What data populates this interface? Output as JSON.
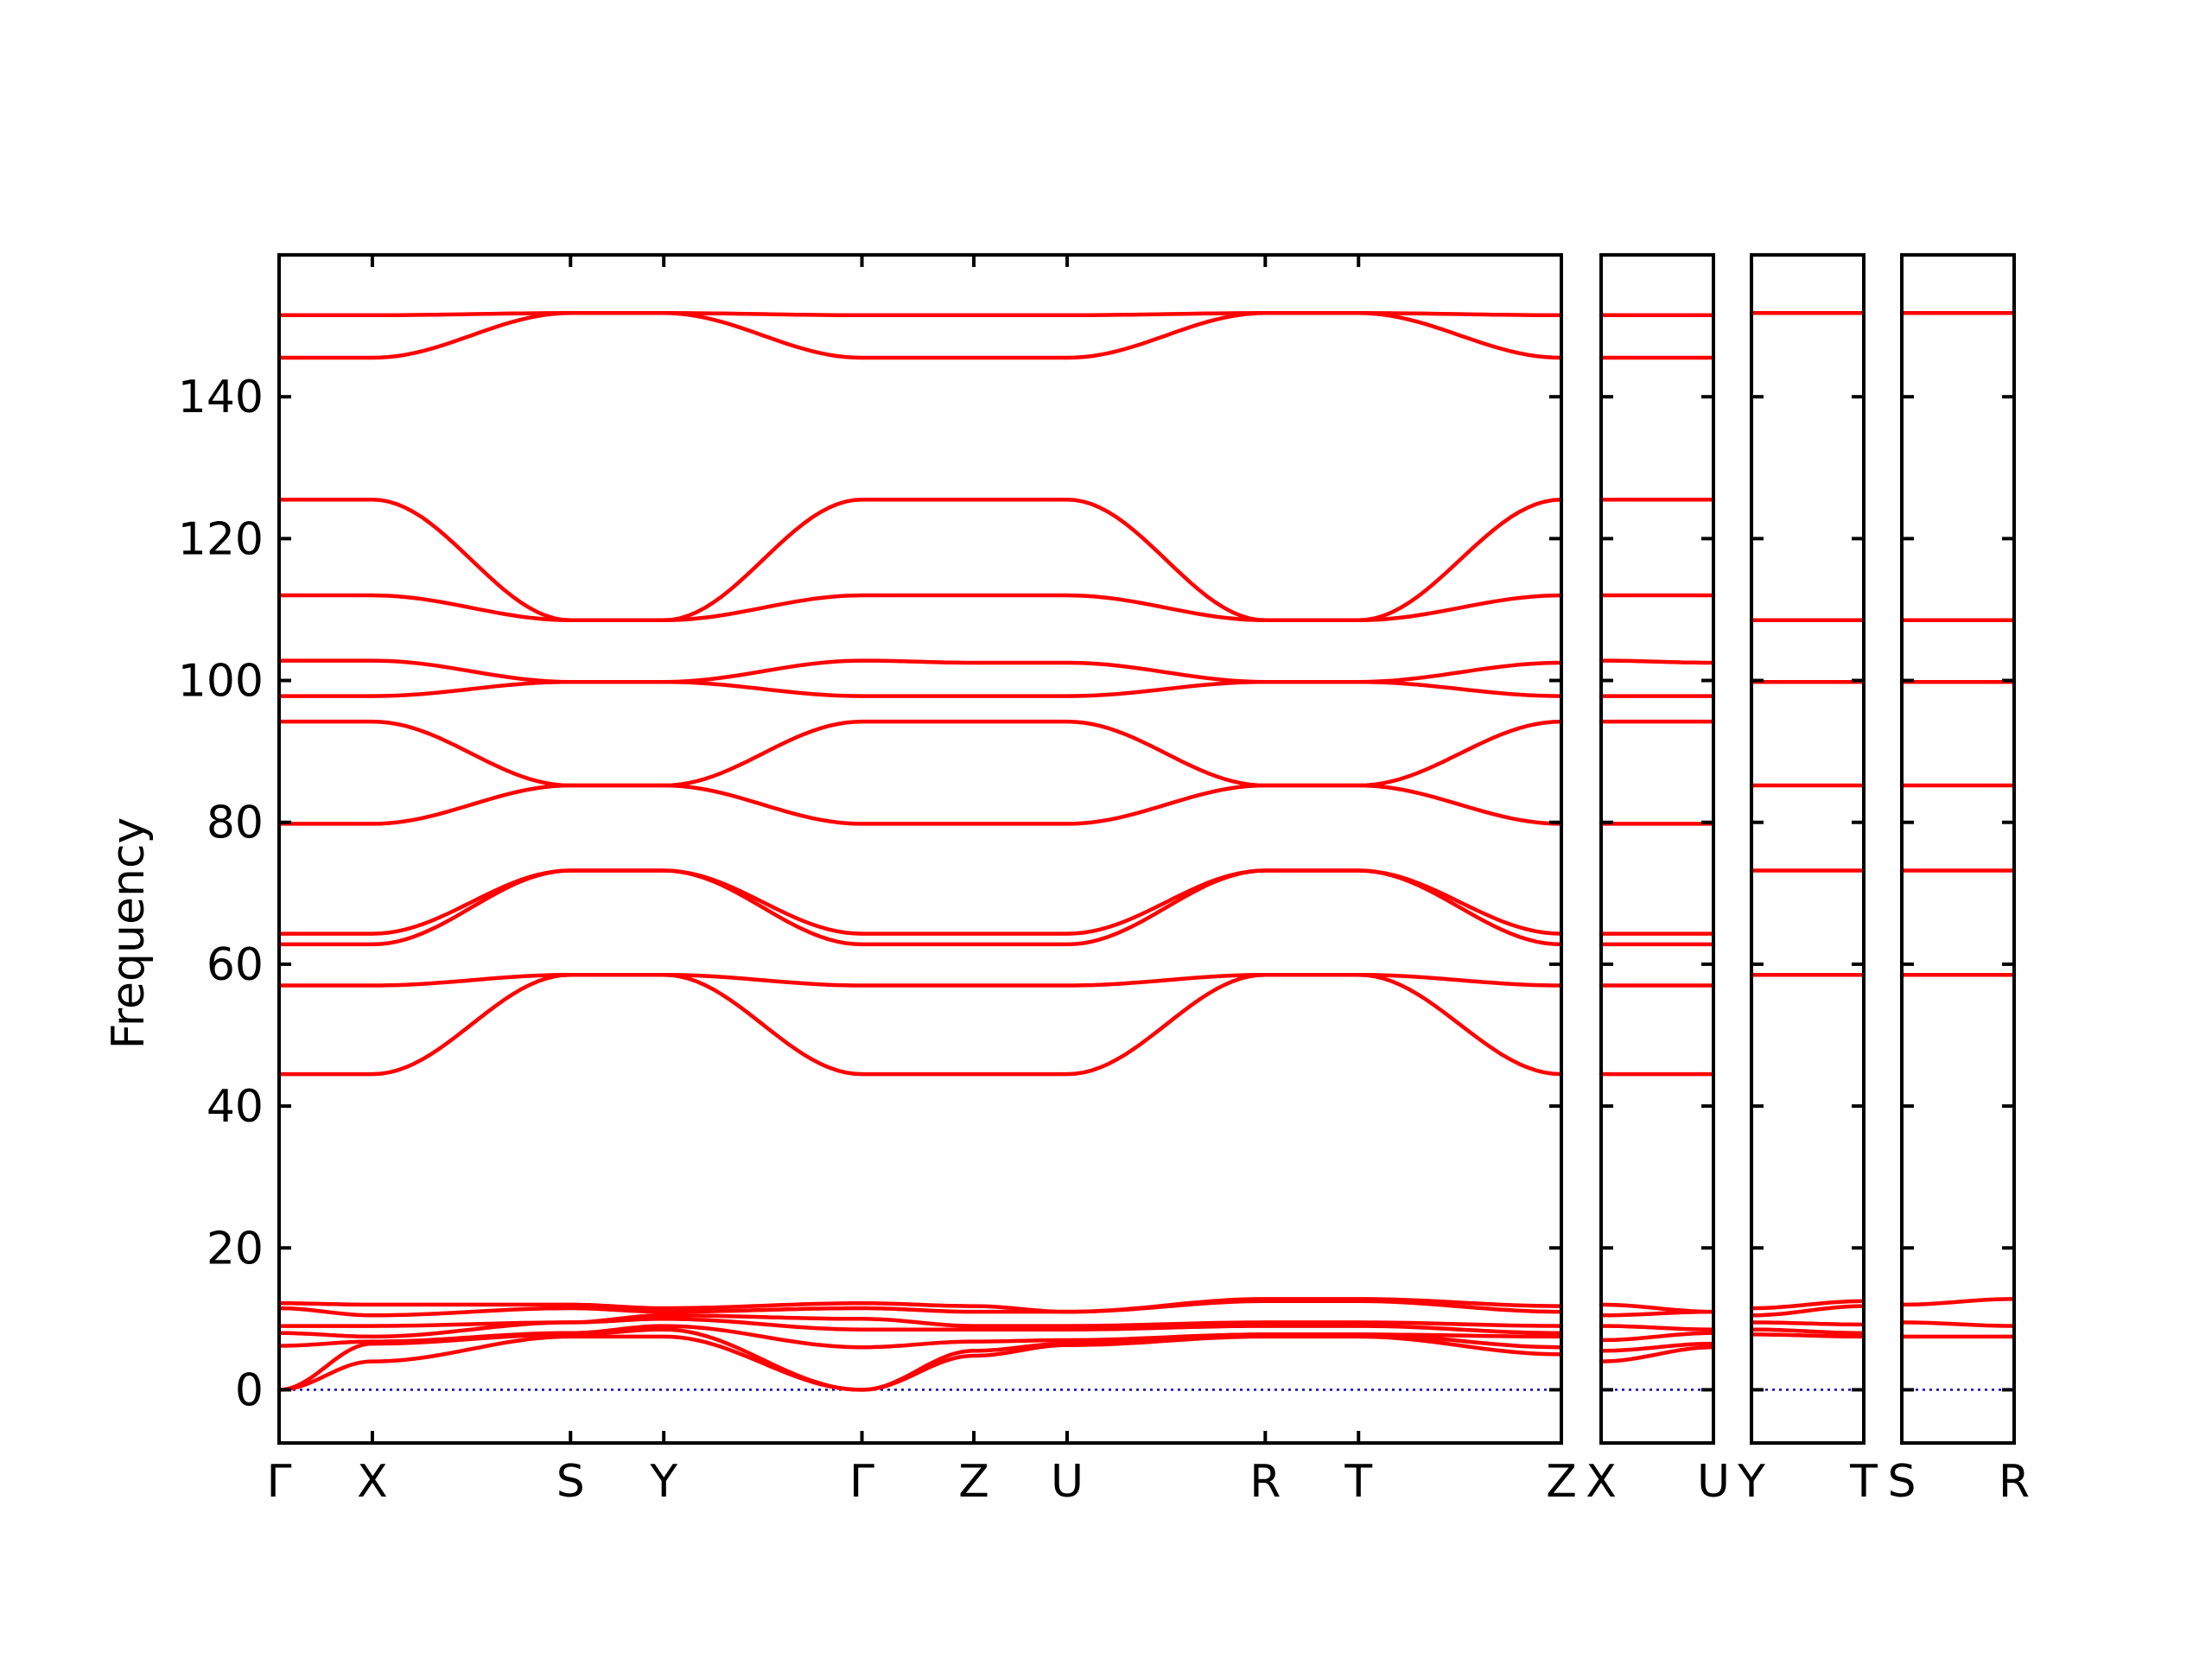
{
  "chart_data": {
    "type": "line",
    "ylabel": "Frequency",
    "ylim": [
      -7.5,
      160
    ],
    "yticks": [
      0,
      20,
      40,
      60,
      80,
      100,
      120,
      140
    ],
    "grid": false,
    "colors": {
      "band": "#ff0000",
      "zero_line": "#0000cc",
      "axes": "#000000"
    },
    "segments": [
      {
        "name": "main",
        "path": [
          "Γ",
          "X",
          "S",
          "Y",
          "Γ",
          "Z",
          "U",
          "R",
          "T",
          "Z"
        ],
        "x": [
          0,
          0.4,
          1.25,
          1.65,
          2.5,
          2.98,
          3.38,
          4.23,
          4.63,
          5.5
        ],
        "series": [
          {
            "name": "",
            "values": [
              0,
              4,
              7.5,
              7.5,
              0,
              4.8,
              6.3,
              7.5,
              7.5,
              5
            ]
          },
          {
            "name": "",
            "values": [
              0,
              6.5,
              7.8,
              8.5,
              0,
              5.5,
              6.5,
              7.8,
              7.8,
              6
            ]
          },
          {
            "name": "",
            "values": [
              6.2,
              6.8,
              8,
              9,
              6,
              6.8,
              7,
              7.8,
              7.8,
              7.5
            ]
          },
          {
            "name": "",
            "values": [
              8,
              7.5,
              9.5,
              10,
              8.5,
              8.5,
              8.5,
              9,
              9,
              8
            ]
          },
          {
            "name": "",
            "values": [
              9,
              9,
              9.5,
              10.5,
              10,
              9,
              9,
              9.5,
              9.5,
              9
            ]
          },
          {
            "name": "",
            "values": [
              11.5,
              10.5,
              11.5,
              11,
              11.5,
              11,
              11,
              12.5,
              12.5,
              11
            ]
          },
          {
            "name": "",
            "values": [
              12.2,
              12,
              12,
              11.5,
              12.2,
              11.8,
              11,
              12.8,
              12.8,
              11.8
            ]
          },
          {
            "name": "",
            "values": [
              44.5,
              44.5,
              58.5,
              58.5,
              44.5,
              44.5,
              44.5,
              58.5,
              58.5,
              44.5
            ]
          },
          {
            "name": "",
            "values": [
              57,
              57,
              58.5,
              58.5,
              57,
              57,
              57,
              58.5,
              58.5,
              57
            ]
          },
          {
            "name": "",
            "values": [
              62.8,
              62.8,
              73.2,
              73.2,
              62.8,
              62.8,
              62.8,
              73.2,
              73.2,
              62.8
            ]
          },
          {
            "name": "",
            "values": [
              64.3,
              64.3,
              73.2,
              73.2,
              64.3,
              64.3,
              64.3,
              73.2,
              73.2,
              64.3
            ]
          },
          {
            "name": "",
            "values": [
              79.8,
              79.8,
              85.2,
              85.2,
              79.8,
              79.8,
              79.8,
              85.2,
              85.2,
              79.8
            ]
          },
          {
            "name": "",
            "values": [
              94.2,
              94.2,
              85.2,
              85.2,
              94.2,
              94.2,
              94.2,
              85.2,
              85.2,
              94.2
            ]
          },
          {
            "name": "",
            "values": [
              97.8,
              97.8,
              99.8,
              99.8,
              97.8,
              97.8,
              97.8,
              99.8,
              99.8,
              97.8
            ]
          },
          {
            "name": "",
            "values": [
              102.8,
              102.8,
              99.8,
              99.8,
              102.8,
              102.5,
              102.5,
              99.8,
              99.8,
              102.5
            ]
          },
          {
            "name": "",
            "values": [
              112,
              112,
              108.5,
              108.5,
              112,
              112,
              112,
              108.5,
              108.5,
              112
            ]
          },
          {
            "name": "",
            "values": [
              125.5,
              125.5,
              108.5,
              108.5,
              125.5,
              125.5,
              125.5,
              108.5,
              108.5,
              125.5
            ]
          },
          {
            "name": "",
            "values": [
              145.5,
              145.5,
              151.8,
              151.8,
              145.5,
              145.5,
              145.5,
              151.8,
              151.8,
              145.5
            ]
          },
          {
            "name": "",
            "values": [
              151.5,
              151.5,
              151.8,
              151.8,
              151.5,
              151.5,
              151.5,
              151.8,
              151.8,
              151.5
            ]
          }
        ]
      },
      {
        "name": "x-u",
        "path": [
          "X",
          "U"
        ],
        "x": [
          0,
          1
        ],
        "series": [
          {
            "name": "",
            "values": [
              4,
              6
            ]
          },
          {
            "name": "",
            "values": [
              5.5,
              6.5
            ]
          },
          {
            "name": "",
            "values": [
              7,
              8
            ]
          },
          {
            "name": "",
            "values": [
              9,
              8.5
            ]
          },
          {
            "name": "",
            "values": [
              10.5,
              11
            ]
          },
          {
            "name": "",
            "values": [
              12,
              11
            ]
          },
          {
            "name": "",
            "values": [
              44.5,
              44.5
            ]
          },
          {
            "name": "",
            "values": [
              57,
              57
            ]
          },
          {
            "name": "",
            "values": [
              62.8,
              62.8
            ]
          },
          {
            "name": "",
            "values": [
              64.3,
              64.3
            ]
          },
          {
            "name": "",
            "values": [
              79.8,
              79.8
            ]
          },
          {
            "name": "",
            "values": [
              94.2,
              94.2
            ]
          },
          {
            "name": "",
            "values": [
              97.8,
              97.8
            ]
          },
          {
            "name": "",
            "values": [
              102.8,
              102.5
            ]
          },
          {
            "name": "",
            "values": [
              112,
              112
            ]
          },
          {
            "name": "",
            "values": [
              125.5,
              125.5
            ]
          },
          {
            "name": "",
            "values": [
              145.5,
              145.5
            ]
          },
          {
            "name": "",
            "values": [
              151.5,
              151.5
            ]
          }
        ]
      },
      {
        "name": "y-t",
        "path": [
          "Y",
          "T"
        ],
        "x": [
          0,
          1
        ],
        "series": [
          {
            "name": "",
            "values": [
              7.8,
              7.5
            ]
          },
          {
            "name": "",
            "values": [
              8.5,
              8
            ]
          },
          {
            "name": "",
            "values": [
              9.5,
              9.2
            ]
          },
          {
            "name": "",
            "values": [
              10.5,
              11.8
            ]
          },
          {
            "name": "",
            "values": [
              11.5,
              12.5
            ]
          },
          {
            "name": "",
            "values": [
              58.5,
              58.5
            ]
          },
          {
            "name": "",
            "values": [
              73.2,
              73.2
            ]
          },
          {
            "name": "",
            "values": [
              85.2,
              85.2
            ]
          },
          {
            "name": "",
            "values": [
              99.8,
              99.8
            ]
          },
          {
            "name": "",
            "values": [
              108.5,
              108.5
            ]
          },
          {
            "name": "",
            "values": [
              151.8,
              151.8
            ]
          }
        ]
      },
      {
        "name": "s-r",
        "path": [
          "S",
          "R"
        ],
        "x": [
          0,
          1
        ],
        "series": [
          {
            "name": "",
            "values": [
              7.5,
              7.5
            ]
          },
          {
            "name": "",
            "values": [
              9.5,
              9
            ]
          },
          {
            "name": "",
            "values": [
              12,
              12.8
            ]
          },
          {
            "name": "",
            "values": [
              58.5,
              58.5
            ]
          },
          {
            "name": "",
            "values": [
              73.2,
              73.2
            ]
          },
          {
            "name": "",
            "values": [
              85.2,
              85.2
            ]
          },
          {
            "name": "",
            "values": [
              99.8,
              99.8
            ]
          },
          {
            "name": "",
            "values": [
              108.5,
              108.5
            ]
          },
          {
            "name": "",
            "values": [
              151.8,
              151.8
            ]
          }
        ]
      }
    ]
  }
}
